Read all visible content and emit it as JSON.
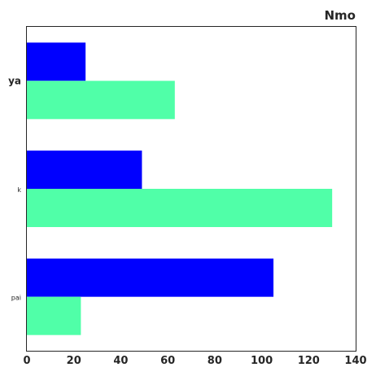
{
  "chart_data": {
    "type": "bar",
    "orientation": "horizontal",
    "title": "Nmo",
    "xlabel": "",
    "ylabel": "",
    "categories": [
      "ya",
      "k",
      "pai"
    ],
    "series": [
      {
        "color": "#0000ff",
        "values": [
          25,
          49,
          105
        ]
      },
      {
        "color": "#50ffa8",
        "values": [
          63,
          130,
          23
        ]
      }
    ],
    "xlim": [
      0,
      140
    ],
    "xticks": [
      0,
      20,
      40,
      60,
      80,
      100,
      120,
      140
    ],
    "grid": false,
    "legend": "none"
  }
}
